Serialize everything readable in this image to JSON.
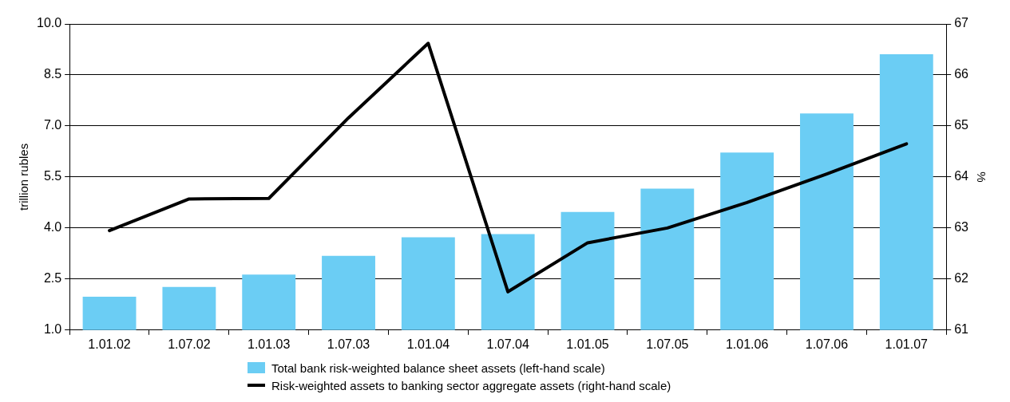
{
  "chart_data": {
    "type": "bar",
    "categories": [
      "1.01.02",
      "1.07.02",
      "1.01.03",
      "1.07.03",
      "1.01.04",
      "1.07.04",
      "1.01.05",
      "1.07.05",
      "1.01.06",
      "1.07.06",
      "1.01.07"
    ],
    "series": [
      {
        "name": "Total bank risk-weighted balance sheet assets (left-hand scale)",
        "color": "#6bcdf4",
        "values": [
          1.98,
          2.27,
          2.63,
          3.18,
          3.73,
          3.82,
          4.47,
          5.16,
          6.22,
          7.37,
          9.11
        ]
      },
      {
        "name": "Risk-weighted assets to banking sector aggregate assets (right-hand scale)",
        "type": "line",
        "axis": "y2",
        "color": "#000000",
        "values": [
          62.95,
          63.57,
          63.58,
          65.16,
          66.62,
          61.75,
          62.71,
          63.0,
          63.5,
          64.06,
          64.65
        ]
      }
    ],
    "ylabel": "trillion rubles",
    "y2label": "%",
    "ylim": [
      1,
      10
    ],
    "yticks": [
      {
        "value": 1,
        "label": "1.0"
      },
      {
        "value": 2.5,
        "label": "2.5"
      },
      {
        "value": 4,
        "label": "4.0"
      },
      {
        "value": 5.5,
        "label": "5.5"
      },
      {
        "value": 7,
        "label": "7.0"
      },
      {
        "value": 8.5,
        "label": "8.5"
      },
      {
        "value": 10,
        "label": "10.0"
      }
    ],
    "y2lim": [
      61,
      67
    ],
    "y2ticks": [
      61,
      62,
      63,
      64,
      65,
      66,
      67
    ],
    "grid": "y",
    "legend": "bottom",
    "marker": "none",
    "line_style": "solid"
  }
}
